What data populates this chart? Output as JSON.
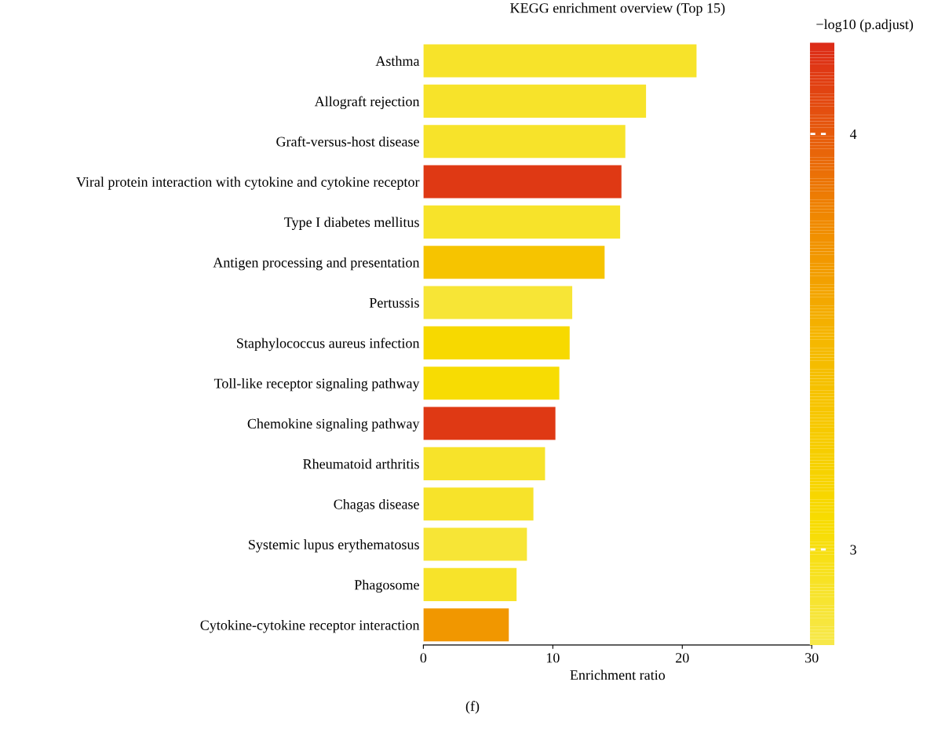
{
  "chart_data": {
    "type": "bar",
    "orientation": "horizontal",
    "title": "KEGG enrichment overview (Top 15)",
    "xlabel": "Enrichment ratio",
    "clabel": "−log10 (p.adjust)",
    "categories": [
      "Asthma",
      "Allograft rejection",
      "Graft-versus-host disease",
      "Viral protein interaction with cytokine and cytokine receptor",
      "Type I diabetes mellitus",
      "Antigen processing and presentation",
      "Pertussis",
      "Staphylococcus aureus infection",
      "Toll-like receptor signaling pathway",
      "Chemokine signaling pathway",
      "Rheumatoid arthritis",
      "Chagas disease",
      "Systemic lupus erythematosus",
      "Phagosome",
      "Cytokine-cytokine receptor interaction"
    ],
    "values": [
      21.1,
      17.2,
      15.6,
      15.3,
      15.2,
      14.0,
      11.5,
      11.3,
      10.5,
      10.2,
      9.4,
      8.5,
      8.0,
      7.2,
      6.6
    ],
    "cvalues": [
      2.9,
      2.9,
      2.9,
      4.15,
      2.9,
      3.35,
      2.85,
      3.1,
      3.05,
      4.15,
      2.9,
      2.9,
      2.85,
      2.9,
      3.7
    ],
    "clim": [
      2.77,
      4.22
    ],
    "cticks": [
      3,
      4
    ],
    "xlim": [
      0,
      30
    ],
    "xticks": [
      0,
      10,
      20,
      30
    ],
    "grid": false,
    "legend": false,
    "annotations": [
      "(f)"
    ]
  }
}
